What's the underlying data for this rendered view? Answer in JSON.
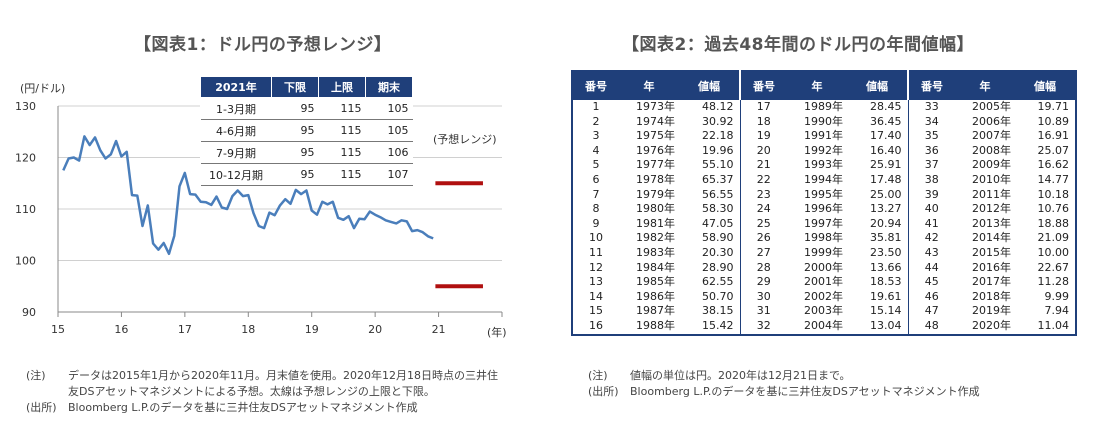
{
  "left_panel": {
    "title": "【図表1：ドル円の予想レンジ】",
    "notes": [
      {
        "label": "(注)",
        "text": "データは2015年1月から2020年11月。月末値を使用。2020年12月18日時点の三井住"
      },
      {
        "label": "",
        "text": "友DSアセットマネジメントによる予想。太線は予想レンジの上限と下限。"
      },
      {
        "label": "(出所)",
        "text": "Bloomberg L.P.のデータを基に三井住友DSアセットマネジメント作成"
      }
    ]
  },
  "right_panel": {
    "title": "【図表2：過去48年間のドル円の年間値幅】",
    "notes": [
      {
        "label": "(注)",
        "text": "値幅の単位は円。2020年は12月21日まで。"
      },
      {
        "label": "(出所)",
        "text": "Bloomberg L.P.のデータを基に三井住友DSアセットマネジメント作成"
      }
    ]
  },
  "chart_data": [
    {
      "type": "line",
      "title": "【図表1：ドル円の予想レンジ】",
      "ylabel": "(円/ドル)",
      "xlabel": "(年)",
      "ylim": [
        90,
        130
      ],
      "yticks": [
        90,
        100,
        110,
        120,
        130
      ],
      "xlim": [
        15,
        22
      ],
      "xticks": [
        "15",
        "16",
        "17",
        "18",
        "19",
        "20",
        "21"
      ],
      "grid": true,
      "series": [
        {
          "color": "#4a7ebb",
          "x_start": 2015.083,
          "x_step": 0.08333,
          "values": [
            117.5,
            119.8,
            120.0,
            119.4,
            124.1,
            122.4,
            123.9,
            121.4,
            119.8,
            120.6,
            123.2,
            120.2,
            121.1,
            112.7,
            112.6,
            106.7,
            110.7,
            103.3,
            102.1,
            103.4,
            101.3,
            104.8,
            114.4,
            117.0,
            112.9,
            112.8,
            111.4,
            111.3,
            110.8,
            112.4,
            110.3,
            110.0,
            112.5,
            113.6,
            112.5,
            112.7,
            109.2,
            106.7,
            106.3,
            109.3,
            108.8,
            110.7,
            111.9,
            111.0,
            113.7,
            112.9,
            113.6,
            109.7,
            108.9,
            111.4,
            110.9,
            111.4,
            108.3,
            107.9,
            108.6,
            106.3,
            108.1,
            108.0,
            109.5,
            108.9,
            108.4,
            107.8,
            107.5,
            107.2,
            107.8,
            107.6,
            105.7,
            105.9,
            105.5,
            104.7,
            104.3
          ],
          "forecast_color": "#b01010"
        }
      ],
      "annotations": [
        {
          "text": "(予想レンジ)"
        }
      ],
      "forecast_range": {
        "low": 95,
        "high": 115,
        "x_start": 20.95,
        "x_end": 21.7
      },
      "table": {
        "headers": [
          "2021年",
          "下限",
          "上限",
          "期末"
        ],
        "rows": [
          [
            "1-3月期",
            "95",
            "115",
            "105"
          ],
          [
            "4-6月期",
            "95",
            "115",
            "105"
          ],
          [
            "7-9月期",
            "95",
            "115",
            "106"
          ],
          [
            "10-12月期",
            "95",
            "115",
            "107"
          ]
        ]
      }
    },
    {
      "type": "table",
      "title": "【図表2：過去48年間のドル円の年間値幅】",
      "headers": [
        "番号",
        "年",
        "値幅",
        "番号",
        "年",
        "値幅",
        "番号",
        "年",
        "値幅"
      ],
      "rows": [
        [
          "1",
          "1973年",
          "48.12",
          "17",
          "1989年",
          "28.45",
          "33",
          "2005年",
          "19.71"
        ],
        [
          "2",
          "1974年",
          "30.92",
          "18",
          "1990年",
          "36.45",
          "34",
          "2006年",
          "10.89"
        ],
        [
          "3",
          "1975年",
          "22.18",
          "19",
          "1991年",
          "17.40",
          "35",
          "2007年",
          "16.91"
        ],
        [
          "4",
          "1976年",
          "19.96",
          "20",
          "1992年",
          "16.40",
          "36",
          "2008年",
          "25.07"
        ],
        [
          "5",
          "1977年",
          "55.10",
          "21",
          "1993年",
          "25.91",
          "37",
          "2009年",
          "16.62"
        ],
        [
          "6",
          "1978年",
          "65.37",
          "22",
          "1994年",
          "17.48",
          "38",
          "2010年",
          "14.77"
        ],
        [
          "7",
          "1979年",
          "56.55",
          "23",
          "1995年",
          "25.00",
          "39",
          "2011年",
          "10.18"
        ],
        [
          "8",
          "1980年",
          "58.30",
          "24",
          "1996年",
          "13.27",
          "40",
          "2012年",
          "10.76"
        ],
        [
          "9",
          "1981年",
          "47.05",
          "25",
          "1997年",
          "20.94",
          "41",
          "2013年",
          "18.88"
        ],
        [
          "10",
          "1982年",
          "58.90",
          "26",
          "1998年",
          "35.81",
          "42",
          "2014年",
          "21.09"
        ],
        [
          "11",
          "1983年",
          "20.30",
          "27",
          "1999年",
          "23.50",
          "43",
          "2015年",
          "10.00"
        ],
        [
          "12",
          "1984年",
          "28.90",
          "28",
          "2000年",
          "13.66",
          "44",
          "2016年",
          "22.67"
        ],
        [
          "13",
          "1985年",
          "62.55",
          "29",
          "2001年",
          "18.53",
          "45",
          "2017年",
          "11.28"
        ],
        [
          "14",
          "1986年",
          "50.70",
          "30",
          "2002年",
          "19.61",
          "46",
          "2018年",
          "9.99"
        ],
        [
          "15",
          "1987年",
          "38.15",
          "31",
          "2003年",
          "15.14",
          "47",
          "2019年",
          "7.94"
        ],
        [
          "16",
          "1988年",
          "15.42",
          "32",
          "2004年",
          "13.04",
          "48",
          "2020年",
          "11.04"
        ]
      ]
    }
  ]
}
